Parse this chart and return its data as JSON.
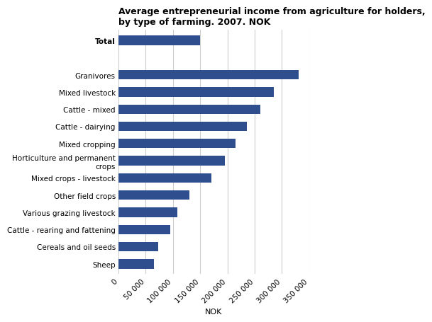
{
  "title": "Average entrepreneurial income from agriculture for holders,\nby type of farming. 2007. NOK",
  "categories": [
    "Total",
    "",
    "Granivores",
    "Mixed livestock",
    "Cattle - mixed",
    "Cattle - dairying",
    "Mixed cropping",
    "Horticulture and permanent\ncrops",
    "Mixed crops - livestock",
    "Other field crops",
    "Various grazing livestock",
    "Cattle - rearing and fattening",
    "Cereals and oil seeds",
    "Sheep"
  ],
  "values": [
    150000,
    0,
    330000,
    285000,
    260000,
    235000,
    215000,
    195000,
    170000,
    130000,
    108000,
    95000,
    73000,
    65000
  ],
  "skip_bar": [
    false,
    true,
    false,
    false,
    false,
    false,
    false,
    false,
    false,
    false,
    false,
    false,
    false,
    false
  ],
  "bar_color": "#2e4e8e",
  "xlabel": "NOK",
  "xlim": [
    0,
    350000
  ],
  "xticks": [
    0,
    50000,
    100000,
    150000,
    200000,
    250000,
    300000,
    350000
  ],
  "xtick_labels": [
    "0",
    "50 000",
    "100 000",
    "150 000",
    "200 000",
    "250 000",
    "300 000",
    "350 000"
  ],
  "background_color": "#ffffff",
  "grid_color": "#cccccc",
  "title_fontsize": 9,
  "label_fontsize": 8,
  "tick_fontsize": 7.5
}
